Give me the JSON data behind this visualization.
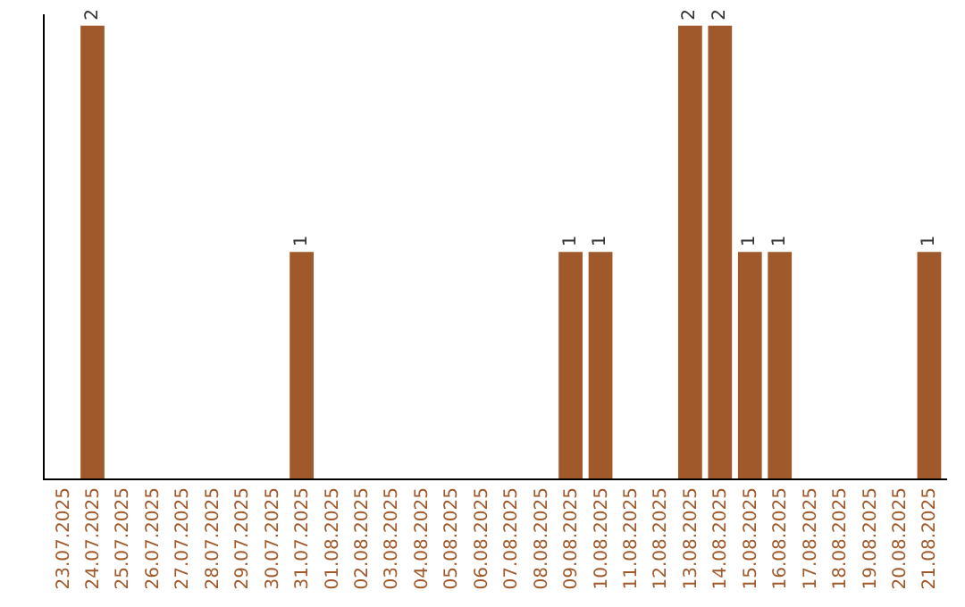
{
  "chart_data": {
    "type": "bar",
    "categories": [
      "23.07.2025",
      "24.07.2025",
      "25.07.2025",
      "26.07.2025",
      "27.07.2025",
      "28.07.2025",
      "29.07.2025",
      "30.07.2025",
      "31.07.2025",
      "01.08.2025",
      "02.08.2025",
      "03.08.2025",
      "04.08.2025",
      "05.08.2025",
      "06.08.2025",
      "07.08.2025",
      "08.08.2025",
      "09.08.2025",
      "10.08.2025",
      "11.08.2025",
      "12.08.2025",
      "13.08.2025",
      "14.08.2025",
      "15.08.2025",
      "16.08.2025",
      "17.08.2025",
      "18.08.2025",
      "19.08.2025",
      "20.08.2025",
      "21.08.2025"
    ],
    "values": [
      0,
      2,
      0,
      0,
      0,
      0,
      0,
      0,
      1,
      0,
      0,
      0,
      0,
      0,
      0,
      0,
      0,
      1,
      1,
      0,
      0,
      2,
      2,
      1,
      1,
      0,
      0,
      0,
      0,
      1
    ],
    "value_labels": [
      null,
      "2",
      null,
      null,
      null,
      null,
      null,
      null,
      "1",
      null,
      null,
      null,
      null,
      null,
      null,
      null,
      null,
      "1",
      "1",
      null,
      null,
      "2",
      "2",
      "1",
      "1",
      null,
      null,
      null,
      null,
      "1"
    ],
    "color": "#a0592a",
    "ylim": [
      0,
      2.05
    ],
    "tick_labels": "x"
  }
}
